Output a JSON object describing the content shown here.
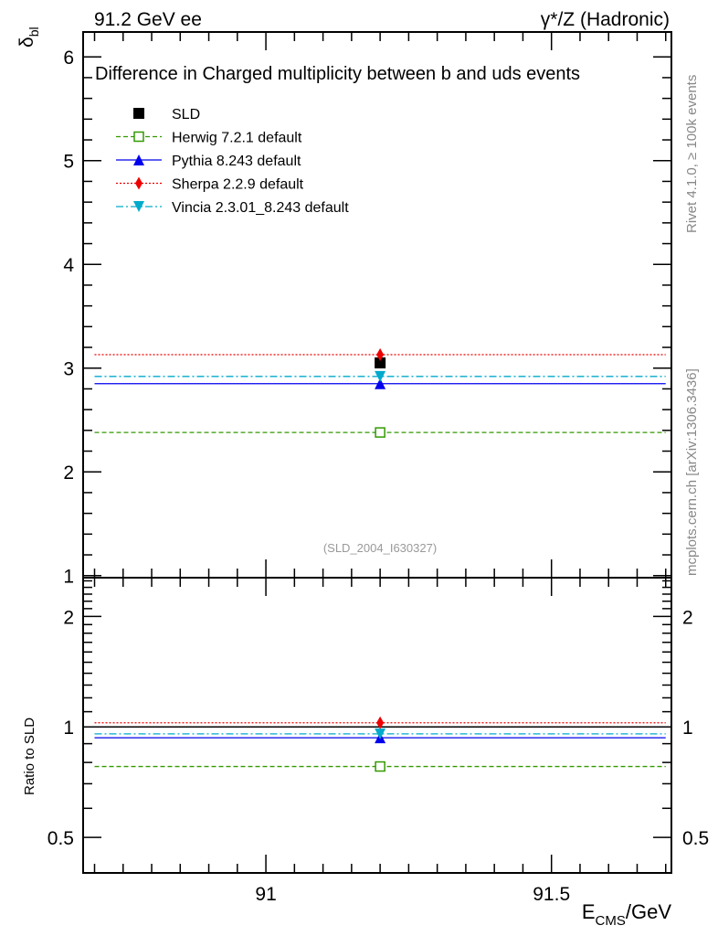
{
  "header": {
    "left": "91.2 GeV ee",
    "right": "γ*/Z (Hadronic)"
  },
  "side_labels": {
    "rivet": "Rivet 4.1.0, ≥ 100k events",
    "mcplots": "mcplots.cern.ch [arXiv:1306.3436]"
  },
  "chart_data": [
    {
      "type": "scatter",
      "title": "Difference in Charged multiplicity between b and uds events",
      "ylabel_main": "δ",
      "ylabel_sub": "bl",
      "analysis_tag": "(SLD_2004_I630327)",
      "xlim": [
        90.68,
        91.71
      ],
      "ylim": [
        0.98,
        6.24
      ],
      "yticks": [
        "1",
        "2",
        "3",
        "4",
        "5",
        "6"
      ],
      "x": [
        91.2
      ],
      "bin": [
        90.7,
        91.7
      ],
      "series": [
        {
          "name": "SLD",
          "values": [
            3.05
          ],
          "color": "#000000",
          "marker": "square-filled",
          "line": "none"
        },
        {
          "name": "Herwig 7.2.1 default",
          "values": [
            2.38
          ],
          "color": "#339900",
          "marker": "square-open",
          "line": "dashed"
        },
        {
          "name": "Pythia 8.243 default",
          "values": [
            2.85
          ],
          "color": "#0000ee",
          "marker": "triangle-up",
          "line": "solid"
        },
        {
          "name": "Sherpa 2.2.9 default",
          "values": [
            3.13
          ],
          "color": "#ee0000",
          "marker": "diamond",
          "line": "dotted"
        },
        {
          "name": "Vincia 2.3.01_8.243 default",
          "values": [
            2.92
          ],
          "color": "#00aacc",
          "marker": "triangle-down",
          "line": "dashdot"
        }
      ]
    },
    {
      "type": "scatter",
      "ylabel": "Ratio to SLD",
      "xlabel_main": "E",
      "xlabel_sub": "CMS",
      "xlabel_tail": "/GeV",
      "yscale": "log",
      "ylim": [
        0.4,
        2.55
      ],
      "yticks": [
        "0.5",
        "1",
        "2"
      ],
      "xticks": [
        "91",
        "91.5"
      ],
      "series": [
        {
          "name": "Herwig 7.2.1 default",
          "values": [
            0.78
          ]
        },
        {
          "name": "Pythia 8.243 default",
          "values": [
            0.934
          ]
        },
        {
          "name": "Sherpa 2.2.9 default",
          "values": [
            1.026
          ]
        },
        {
          "name": "Vincia 2.3.01_8.243 default",
          "values": [
            0.957
          ]
        }
      ]
    }
  ]
}
